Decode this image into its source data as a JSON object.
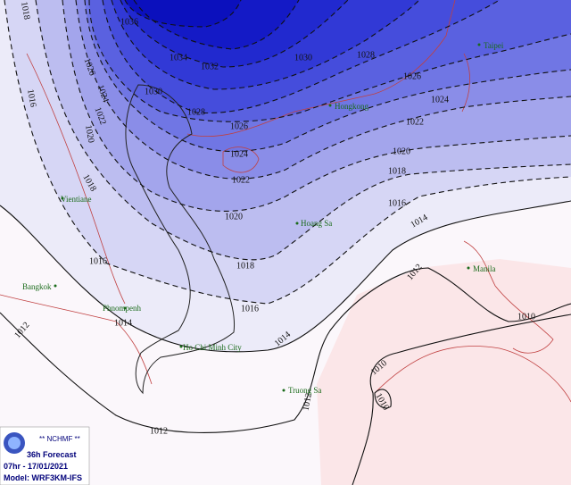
{
  "isobar_labels": [
    1018,
    1036,
    1034,
    1032,
    1030,
    1028,
    1026,
    1024,
    1022,
    1020,
    1018,
    1016,
    1014,
    1012,
    1010,
    1026,
    1024,
    1022,
    1020,
    1016,
    1018,
    1030,
    1028,
    1026,
    1024,
    1022,
    1020,
    1018,
    1016,
    1014,
    1016,
    1014,
    1012,
    1012,
    1012,
    1010,
    1010
  ],
  "places": [
    "Taipei",
    "Hongkong",
    "Vientiane",
    "Hoang Sa",
    "Manila",
    "Bangkok",
    "Phnompenh",
    "Ho Chi Minh City",
    "Truong Sa"
  ],
  "info": {
    "agency": "** NCHMF **",
    "forecast": "36h Forecast",
    "time": "07hr - 17/01/2021",
    "model": "Model: WRF3KM-IFS"
  }
}
